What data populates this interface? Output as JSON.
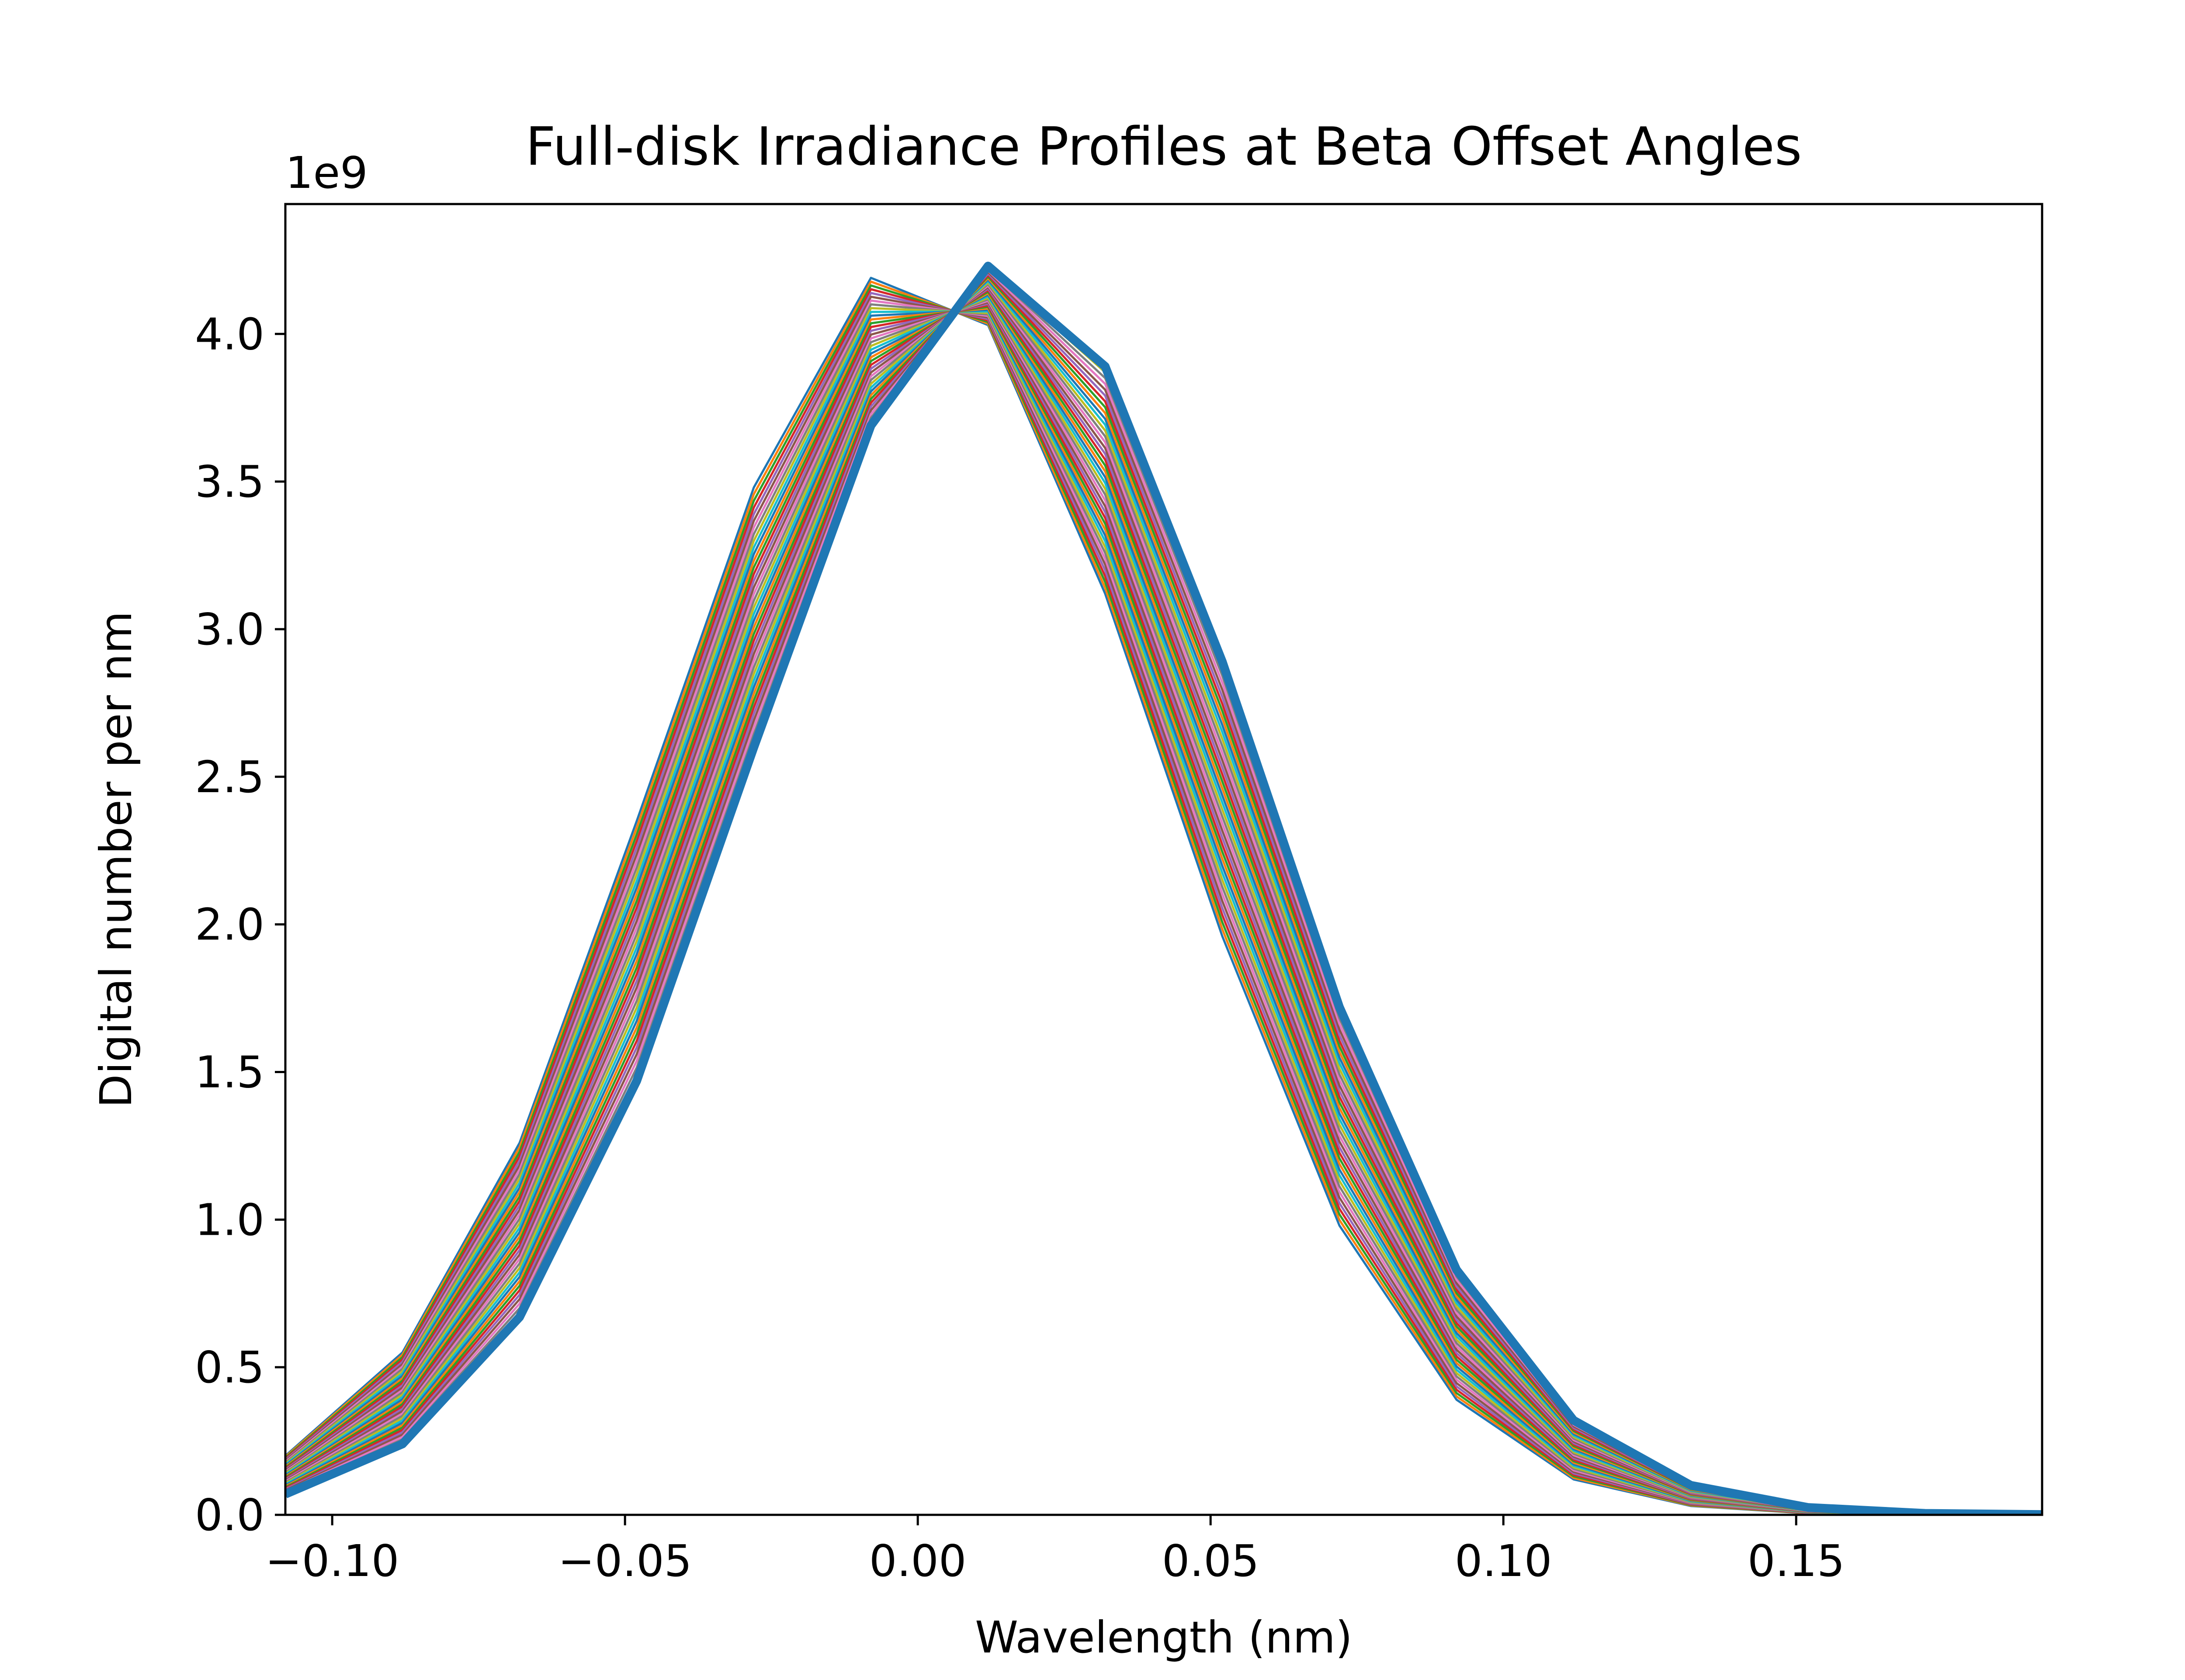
{
  "chart_data": {
    "type": "line",
    "title": "Full-disk Irradiance Profiles at Beta Offset Angles",
    "xlabel": "Wavelength (nm)",
    "ylabel": "Digital number per nm",
    "y_offset_label": "1e9",
    "xlim": [
      -0.108,
      0.192
    ],
    "ylim": [
      0,
      4440000000.0
    ],
    "x_ticks": [
      -0.1,
      -0.05,
      0.0,
      0.05,
      0.1,
      0.15
    ],
    "x_tick_labels": [
      "−0.10",
      "−0.05",
      "0.00",
      "0.05",
      "0.10",
      "0.15"
    ],
    "y_ticks": [
      0,
      500000000.0,
      1000000000.0,
      1500000000.0,
      2000000000.0,
      2500000000.0,
      3000000000.0,
      3500000000.0,
      4000000000.0
    ],
    "y_tick_labels": [
      "0.0",
      "0.5",
      "1.0",
      "1.5",
      "2.0",
      "2.5",
      "3.0",
      "3.5",
      "4.0"
    ],
    "grid": false,
    "legend": "none",
    "x": [
      -0.108,
      -0.088,
      -0.068,
      -0.048,
      -0.028,
      -0.008,
      0.012,
      0.032,
      0.052,
      0.072,
      0.092,
      0.112,
      0.132,
      0.152,
      0.172,
      0.192
    ],
    "series_start": {
      "values": [
        200000000.0,
        550000000.0,
        1260000000.0,
        2350000000.0,
        3480000000.0,
        4190000000.0,
        4030000000.0,
        3120000000.0,
        1960000000.0,
        980000000.0,
        390000000.0,
        120000000.0,
        30000000.0,
        5000000.0,
        1000000.0,
        0.0
      ]
    },
    "series_end": {
      "values": [
        70000000.0,
        240000000.0,
        670000000.0,
        1470000000.0,
        2600000000.0,
        3690000000.0,
        4230000000.0,
        3890000000.0,
        2890000000.0,
        1720000000.0,
        830000000.0,
        320000000.0,
        100000000.0,
        25000000.0,
        5000000.0,
        1000000.0
      ]
    },
    "series_count": 40,
    "series_colors": [
      "#1f77b4",
      "#ff7f0e",
      "#2ca02c",
      "#d62728",
      "#9467bd",
      "#8c564b",
      "#e377c2",
      "#7f7f7f",
      "#bcbd22",
      "#17becf"
    ],
    "highlight_color": "#1f77b4"
  }
}
